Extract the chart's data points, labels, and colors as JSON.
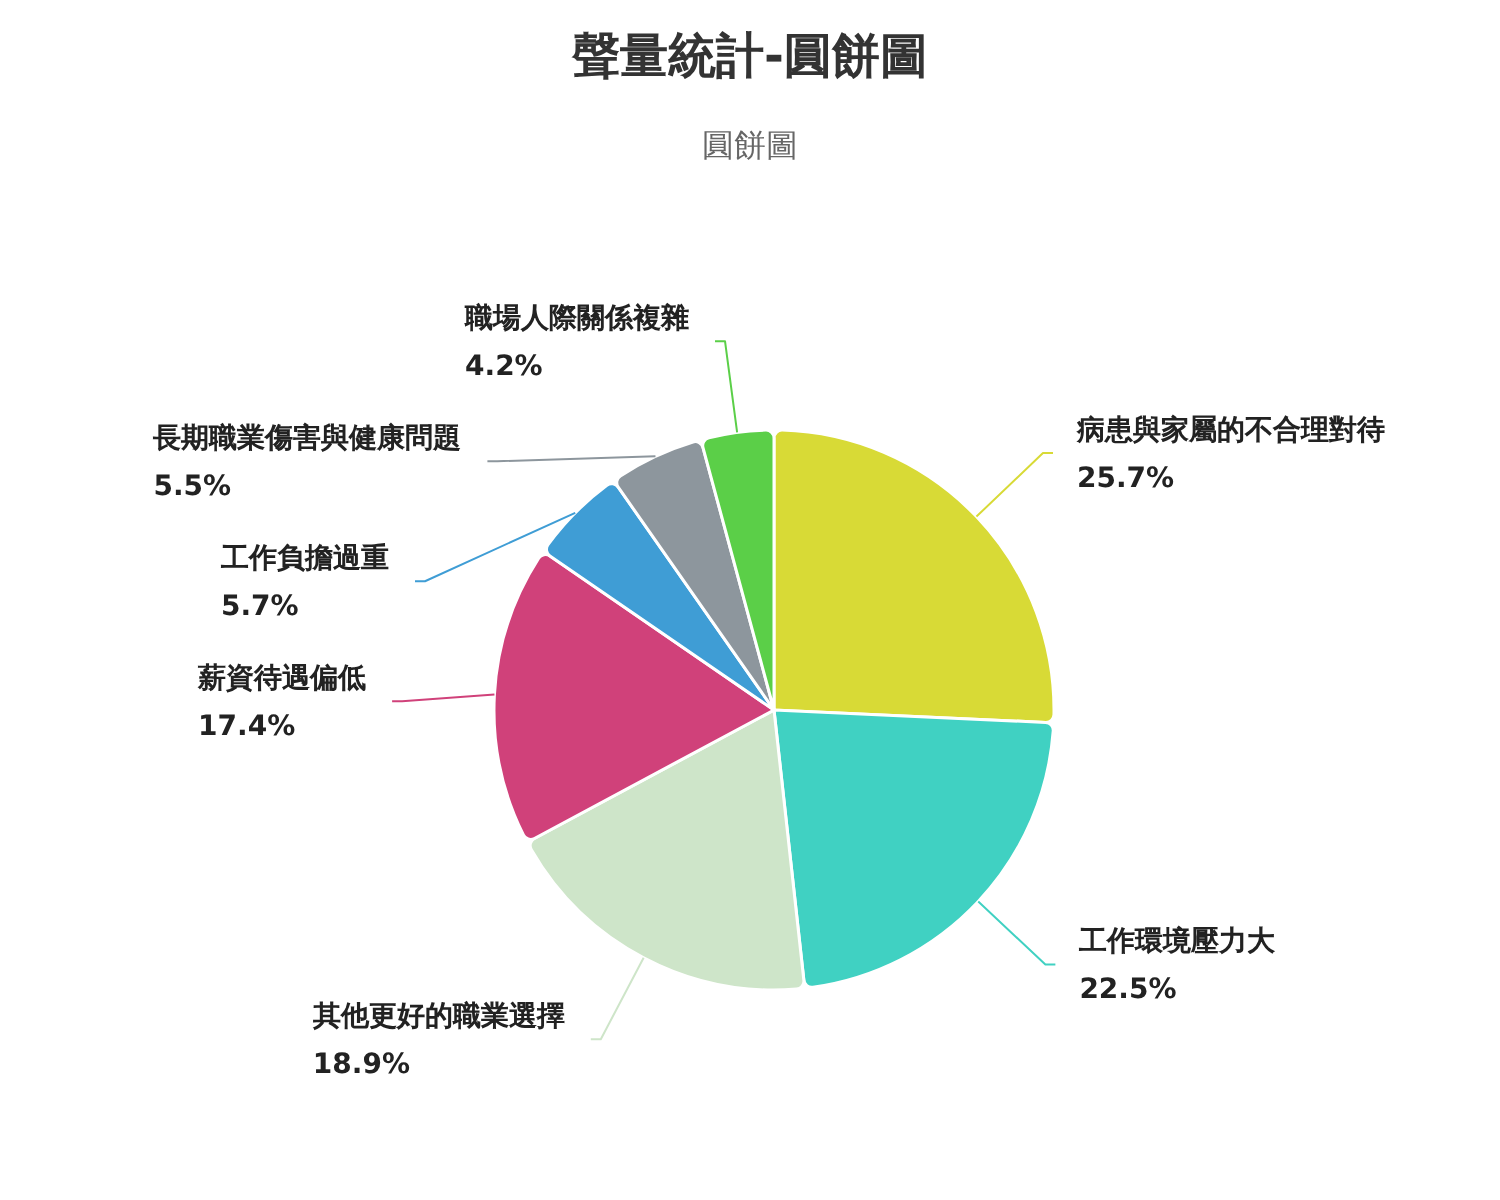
{
  "chart_data": {
    "type": "pie",
    "title": "聲量統計-圓餅圖",
    "subtitle": "圓餅圖",
    "categories": [
      "病患與家屬的不合理對待",
      "工作環境壓力大",
      "其他更好的職業選擇",
      "薪資待遇偏低",
      "工作負擔過重",
      "長期職業傷害與健康問題",
      "職場人際關係複雜"
    ],
    "values": [
      25.7,
      22.5,
      18.9,
      17.4,
      5.7,
      5.5,
      4.2
    ],
    "colors": [
      "#d8da36",
      "#40d1c2",
      "#cee5c9",
      "#d0417a",
      "#3f9dd5",
      "#8d969d",
      "#5bcf48"
    ],
    "value_labels": [
      "25.7%",
      "22.5%",
      "18.9%",
      "17.4%",
      "5.7%",
      "5.5%",
      "4.2%"
    ]
  }
}
